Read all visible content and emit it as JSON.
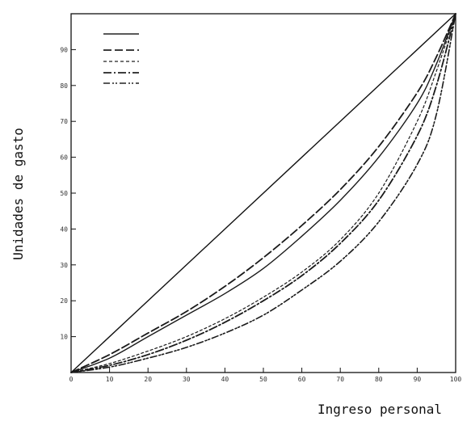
{
  "chart_data": {
    "type": "line",
    "title": "",
    "xlabel": "Ingreso personal",
    "ylabel": "Unidades de gasto",
    "xlim": [
      0,
      100
    ],
    "ylim": [
      0,
      100
    ],
    "grid": false,
    "legend_position": "top-left",
    "x_ticks": [
      0,
      10,
      20,
      30,
      40,
      50,
      60,
      70,
      80,
      90,
      100
    ],
    "x_tick_labels": [
      "0",
      "10",
      "20",
      "30",
      "40",
      "50",
      "60",
      "70",
      "80",
      "90",
      "100"
    ],
    "y_ticks": [
      0,
      10,
      20,
      30,
      40,
      50,
      60,
      70,
      80,
      90,
      100
    ],
    "y_tick_labels": [
      "0",
      "10",
      "20",
      "30",
      "40",
      "50",
      "60",
      "70",
      "80",
      "90",
      "100"
    ],
    "equality_line": {
      "x": [
        0,
        100
      ],
      "y": [
        0,
        100
      ]
    },
    "series": [
      {
        "style": "dash",
        "x": [
          0,
          10,
          20,
          30,
          40,
          50,
          60,
          70,
          80,
          90,
          95,
          100
        ],
        "y": [
          0,
          5,
          11,
          17,
          24,
          32,
          41,
          51,
          63,
          78,
          88,
          100
        ]
      },
      {
        "style": "solid",
        "x": [
          0,
          10,
          20,
          30,
          40,
          50,
          60,
          70,
          80,
          90,
          95,
          100
        ],
        "y": [
          0,
          4,
          10,
          16,
          22,
          29,
          38,
          48,
          60,
          75,
          86,
          100
        ]
      },
      {
        "style": "dashdot",
        "x": [
          0,
          10,
          20,
          30,
          40,
          50,
          60,
          70,
          80,
          90,
          95,
          100
        ],
        "y": [
          0,
          2,
          5,
          9,
          14,
          20,
          27,
          36,
          48,
          66,
          80,
          100
        ]
      },
      {
        "style": "dashdotdot",
        "x": [
          0,
          10,
          20,
          30,
          40,
          50,
          60,
          70,
          80,
          90,
          95,
          100
        ],
        "y": [
          0,
          1.5,
          4,
          7,
          11,
          16,
          23,
          31,
          42,
          58,
          72,
          100
        ]
      },
      {
        "style": "dot",
        "x": [
          0,
          10,
          20,
          30,
          40,
          50,
          60,
          70,
          80,
          90,
          95,
          100
        ],
        "y": [
          0,
          2.5,
          6,
          10,
          15,
          21,
          28,
          37,
          50,
          70,
          84,
          100
        ]
      }
    ]
  }
}
